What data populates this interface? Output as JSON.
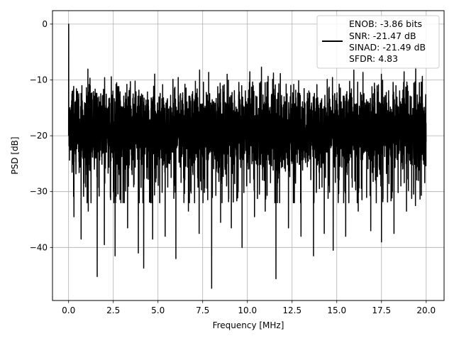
{
  "chart_data": {
    "type": "line",
    "xlabel": "Frequency [MHz]",
    "ylabel": "PSD [dB]",
    "xlim": [
      -0.9,
      21.0
    ],
    "ylim": [
      -49.5,
      2.4
    ],
    "xticks": [
      0.0,
      2.5,
      5.0,
      7.5,
      10.0,
      12.5,
      15.0,
      17.5,
      20.0
    ],
    "xtick_labels": [
      "0.0",
      "2.5",
      "5.0",
      "7.5",
      "10.0",
      "12.5",
      "15.0",
      "17.5",
      "20.0"
    ],
    "yticks": [
      0,
      -10,
      -20,
      -30,
      -40
    ],
    "ytick_labels": [
      "0",
      "−10",
      "−20",
      "−30",
      "−40"
    ],
    "grid": true,
    "legend_position": "top-right",
    "colors": {
      "line": "#000000",
      "grid": "#b0b0b0"
    },
    "legend_lines": [
      "ENOB: -3.86 bits",
      "SNR: -21.47 dB",
      "SINAD: -21.49 dB",
      "SFDR: 4.83"
    ],
    "series": [
      {
        "x_range": [
          0.0,
          20.0
        ],
        "peak": {
          "x": 0.0,
          "y": 0.0
        },
        "typical_band": [
          -26.0,
          -10.0
        ],
        "max_level": -7.0,
        "min_level": -47.3,
        "mean_level": -18.5,
        "deep_nulls": [
          {
            "x": 0.3,
            "y": -34.5
          },
          {
            "x": 0.7,
            "y": -38.5
          },
          {
            "x": 1.1,
            "y": -33.5
          },
          {
            "x": 1.6,
            "y": -45.2
          },
          {
            "x": 2.0,
            "y": -39.5
          },
          {
            "x": 2.6,
            "y": -41.5
          },
          {
            "x": 3.3,
            "y": -36.5
          },
          {
            "x": 3.9,
            "y": -41.0
          },
          {
            "x": 4.2,
            "y": -43.7
          },
          {
            "x": 4.7,
            "y": -38.5
          },
          {
            "x": 5.4,
            "y": -38.0
          },
          {
            "x": 6.0,
            "y": -42.0
          },
          {
            "x": 6.7,
            "y": -33.5
          },
          {
            "x": 7.3,
            "y": -37.5
          },
          {
            "x": 8.0,
            "y": -47.3
          },
          {
            "x": 8.5,
            "y": -35.5
          },
          {
            "x": 9.1,
            "y": -36.5
          },
          {
            "x": 9.7,
            "y": -40.0
          },
          {
            "x": 10.4,
            "y": -34.5
          },
          {
            "x": 11.0,
            "y": -33.5
          },
          {
            "x": 11.6,
            "y": -45.6
          },
          {
            "x": 12.3,
            "y": -36.5
          },
          {
            "x": 13.0,
            "y": -38.0
          },
          {
            "x": 13.7,
            "y": -41.5
          },
          {
            "x": 14.3,
            "y": -37.5
          },
          {
            "x": 14.8,
            "y": -40.5
          },
          {
            "x": 15.5,
            "y": -38.0
          },
          {
            "x": 16.2,
            "y": -33.5
          },
          {
            "x": 16.9,
            "y": -37.0
          },
          {
            "x": 17.5,
            "y": -39.0
          },
          {
            "x": 18.2,
            "y": -37.5
          },
          {
            "x": 18.9,
            "y": -33.5
          },
          {
            "x": 19.4,
            "y": -32.5
          }
        ]
      }
    ]
  }
}
